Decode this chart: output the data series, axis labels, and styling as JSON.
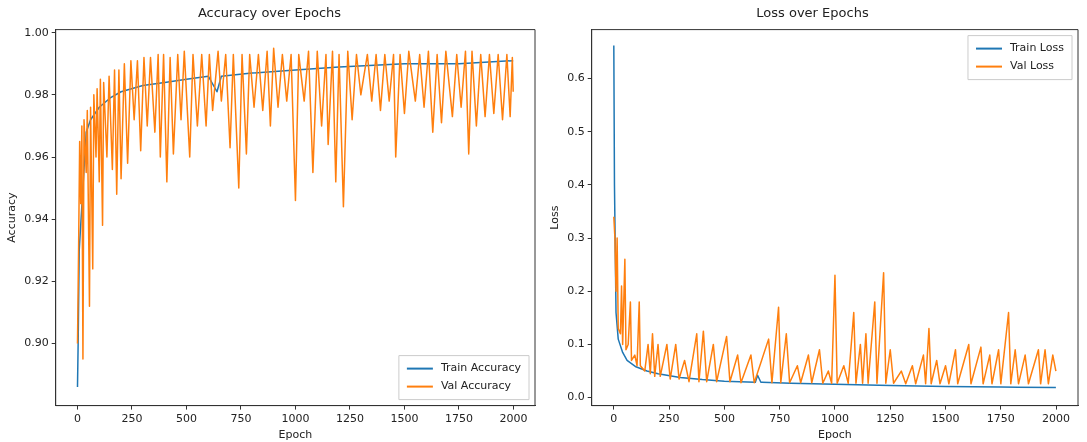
{
  "chart_data": [
    {
      "type": "line",
      "title": "Accuracy over Epochs",
      "xlabel": "Epoch",
      "ylabel": "Accuracy",
      "xlim": [
        -100,
        2099
      ],
      "ylim": [
        0.88,
        1.001
      ],
      "xticks": [
        0,
        250,
        500,
        750,
        1000,
        1250,
        1500,
        1750,
        2000
      ],
      "yticks": [
        {
          "value": 0.9,
          "label": "0.90"
        },
        {
          "value": 0.92,
          "label": "0.92"
        },
        {
          "value": 0.94,
          "label": "0.94"
        },
        {
          "value": 0.96,
          "label": "0.96"
        },
        {
          "value": 0.98,
          "label": "0.98"
        },
        {
          "value": 1.0,
          "label": "1.00"
        }
      ],
      "grid": false,
      "legend": "bottom right",
      "marker": "none",
      "line_style": "solid",
      "series": [
        {
          "name": "Train Accuracy",
          "color": "#1f77b4",
          "x": [
            0,
            3,
            8,
            15,
            25,
            40,
            60,
            100,
            150,
            200,
            300,
            400,
            500,
            600,
            640,
            660,
            800,
            1000,
            1200,
            1500,
            1750,
            1999
          ],
          "values": [
            0.886,
            0.9,
            0.93,
            null,
            null,
            0.968,
            0.972,
            0.976,
            0.979,
            0.981,
            0.983,
            0.984,
            0.985,
            0.986,
            0.981,
            0.986,
            0.987,
            0.988,
            0.989,
            0.99,
            0.99,
            0.991
          ]
        },
        {
          "name": "Val Accuracy",
          "color": "#ff7f0e",
          "x": [
            0,
            5,
            10,
            15,
            20,
            25,
            30,
            40,
            45,
            55,
            60,
            70,
            75,
            85,
            90,
            100,
            105,
            115,
            120,
            135,
            145,
            160,
            170,
            180,
            190,
            200,
            215,
            230,
            245,
            260,
            275,
            290,
            305,
            320,
            335,
            355,
            370,
            380,
            395,
            410,
            425,
            440,
            460,
            475,
            490,
            515,
            530,
            550,
            570,
            590,
            605,
            620,
            645,
            660,
            680,
            700,
            715,
            740,
            755,
            775,
            790,
            810,
            830,
            850,
            870,
            885,
            900,
            920,
            940,
            960,
            980,
            1000,
            1015,
            1040,
            1060,
            1080,
            1100,
            1120,
            1140,
            1150,
            1170,
            1185,
            1200,
            1220,
            1240,
            1260,
            1280,
            1300,
            1330,
            1350,
            1370,
            1390,
            1410,
            1430,
            1450,
            1460,
            1480,
            1500,
            1520,
            1550,
            1570,
            1590,
            1610,
            1630,
            1650,
            1670,
            1690,
            1720,
            1740,
            1760,
            1780,
            1795,
            1810,
            1830,
            1850,
            1870,
            1890,
            1910,
            1930,
            1950,
            1970,
            1985,
            1995,
            1999
          ],
          "values": [
            0.9,
            0.93,
            0.965,
            0.945,
            0.97,
            0.895,
            0.972,
            0.955,
            0.975,
            0.912,
            0.976,
            0.924,
            0.98,
            0.96,
            0.982,
            0.952,
            0.985,
            0.938,
            0.984,
            0.96,
            0.986,
            0.956,
            0.988,
            0.948,
            0.988,
            0.953,
            0.99,
            0.958,
            0.991,
            0.972,
            0.991,
            0.962,
            0.992,
            0.97,
            0.992,
            0.968,
            0.993,
            0.96,
            0.993,
            0.952,
            0.992,
            0.961,
            0.993,
            0.972,
            0.994,
            0.96,
            0.993,
            0.97,
            0.993,
            0.97,
            0.993,
            0.975,
            0.994,
            0.978,
            0.993,
            0.963,
            0.993,
            0.95,
            0.993,
            0.961,
            0.993,
            0.976,
            0.993,
            0.975,
            0.994,
            0.97,
            0.995,
            0.976,
            0.993,
            0.978,
            0.993,
            0.946,
            0.993,
            0.978,
            0.994,
            0.955,
            0.994,
            0.97,
            0.993,
            0.964,
            0.994,
            0.952,
            0.993,
            0.944,
            0.994,
            0.972,
            0.993,
            0.98,
            0.993,
            0.978,
            0.993,
            0.975,
            0.993,
            0.978,
            0.993,
            0.96,
            0.993,
            0.974,
            0.994,
            0.978,
            0.993,
            0.976,
            0.994,
            0.968,
            0.993,
            0.971,
            0.994,
            0.973,
            0.993,
            0.976,
            0.994,
            0.961,
            0.994,
            0.97,
            0.993,
            0.973,
            0.993,
            0.974,
            0.993,
            0.972,
            0.993,
            0.973,
            0.992,
            0.981
          ]
        }
      ]
    },
    {
      "type": "line",
      "title": "Loss over Epochs",
      "xlabel": "Epoch",
      "ylabel": "Loss",
      "xlim": [
        -100,
        2099
      ],
      "ylim": [
        -0.015,
        0.692
      ],
      "xticks": [
        0,
        250,
        500,
        750,
        1000,
        1250,
        1500,
        1750,
        2000
      ],
      "yticks": [
        {
          "value": 0,
          "label": "0.0"
        },
        {
          "value": 0.1,
          "label": "0.1"
        },
        {
          "value": 0.2,
          "label": "0.2"
        },
        {
          "value": 0.3,
          "label": "0.3"
        },
        {
          "value": 0.4,
          "label": "0.4"
        },
        {
          "value": 0.5,
          "label": "0.5"
        },
        {
          "value": 0.6,
          "label": "0.6"
        }
      ],
      "grid": false,
      "legend": "top right",
      "marker": "none",
      "line_style": "solid",
      "series": [
        {
          "name": "Train Loss",
          "color": "#1f77b4",
          "x": [
            0,
            3,
            6,
            10,
            20,
            40,
            60,
            100,
            150,
            200,
            300,
            400,
            500,
            640,
            650,
            665,
            800,
            1000,
            1250,
            1500,
            1750,
            1999
          ],
          "values": [
            0.662,
            0.4,
            null,
            0.16,
            0.11,
            0.085,
            0.07,
            0.058,
            0.05,
            0.045,
            0.038,
            0.034,
            0.031,
            0.029,
            0.042,
            0.029,
            0.027,
            0.025,
            0.023,
            0.021,
            0.02,
            0.019
          ]
        },
        {
          "name": "Val Loss",
          "color": "#ff7f0e",
          "x": [
            0,
            5,
            10,
            15,
            20,
            30,
            35,
            40,
            50,
            55,
            65,
            75,
            80,
            95,
            105,
            115,
            120,
            140,
            155,
            165,
            175,
            185,
            200,
            210,
            240,
            255,
            280,
            295,
            320,
            340,
            375,
            385,
            405,
            420,
            450,
            465,
            510,
            525,
            560,
            575,
            620,
            635,
            700,
            715,
            745,
            755,
            780,
            795,
            830,
            845,
            880,
            895,
            930,
            945,
            970,
            985,
            1000,
            1010,
            1040,
            1060,
            1085,
            1095,
            1115,
            1125,
            1140,
            1150,
            1180,
            1190,
            1220,
            1230,
            1250,
            1265,
            1300,
            1320,
            1350,
            1365,
            1400,
            1410,
            1425,
            1435,
            1460,
            1475,
            1500,
            1515,
            1545,
            1555,
            1605,
            1615,
            1660,
            1670,
            1700,
            1710,
            1740,
            1750,
            1785,
            1795,
            1815,
            1830,
            1860,
            1875,
            1920,
            1930,
            1950,
            1965,
            1985,
            1999
          ],
          "values": [
            0.34,
            0.3,
            0.2,
            0.3,
            0.13,
            0.12,
            0.21,
            0.1,
            0.26,
            0.09,
            0.1,
            0.18,
            0.07,
            0.08,
            0.06,
            0.18,
            0.06,
            0.05,
            0.1,
            0.045,
            0.12,
            0.04,
            0.1,
            0.04,
            0.1,
            0.035,
            0.1,
            0.035,
            0.07,
            0.03,
            0.12,
            0.03,
            0.125,
            0.03,
            0.1,
            0.03,
            0.115,
            0.03,
            0.08,
            0.028,
            0.08,
            0.028,
            0.11,
            0.028,
            0.17,
            0.028,
            0.12,
            0.028,
            0.06,
            0.028,
            0.08,
            0.028,
            0.09,
            0.027,
            0.05,
            0.027,
            0.23,
            0.027,
            0.06,
            0.027,
            0.16,
            0.027,
            0.1,
            0.027,
            0.12,
            0.027,
            0.18,
            0.027,
            0.235,
            0.027,
            0.09,
            0.027,
            0.05,
            0.026,
            0.06,
            0.026,
            0.08,
            0.026,
            0.13,
            0.026,
            0.07,
            0.026,
            0.06,
            0.026,
            0.09,
            0.026,
            0.1,
            0.026,
            0.095,
            0.026,
            0.08,
            0.026,
            0.09,
            0.026,
            0.16,
            0.026,
            0.09,
            0.026,
            0.08,
            0.026,
            0.09,
            0.026,
            0.09,
            0.026,
            0.08,
            0.05
          ]
        }
      ]
    }
  ]
}
